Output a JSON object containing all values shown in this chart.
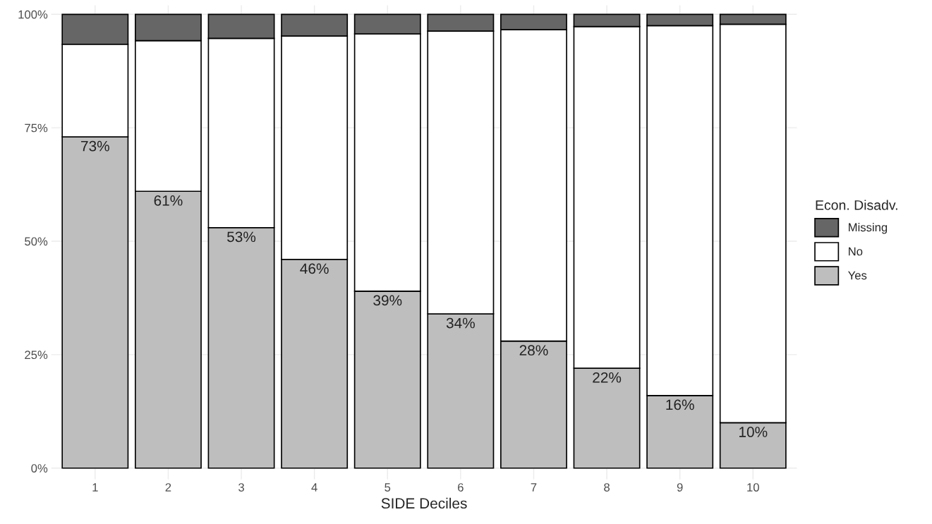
{
  "chart_data": {
    "type": "bar",
    "stacked": true,
    "xlabel": "SIDE Deciles",
    "legend_title": "Econ. Disadv.",
    "legend": "right",
    "grid": true,
    "categories": [
      "1",
      "2",
      "3",
      "4",
      "5",
      "6",
      "7",
      "8",
      "9",
      "10"
    ],
    "series": [
      {
        "name": "Yes",
        "color": "#bebebe",
        "values": [
          73,
          61,
          53,
          46,
          39,
          34,
          28,
          22,
          16,
          10
        ],
        "value_labels": [
          "73%",
          "61%",
          "53%",
          "46%",
          "39%",
          "34%",
          "28%",
          "22%",
          "16%",
          "10%"
        ]
      },
      {
        "name": "No",
        "color": "#ffffff",
        "values": [
          20.4,
          33.2,
          41.7,
          49.2,
          56.7,
          62.3,
          68.6,
          75.3,
          81.5,
          87.8
        ]
      },
      {
        "name": "Missing",
        "color": "#666666",
        "values": [
          6.6,
          5.8,
          5.3,
          4.8,
          4.3,
          3.7,
          3.4,
          2.7,
          2.5,
          2.2
        ]
      }
    ],
    "ylim": [
      -2.5,
      102
    ],
    "yticks": [
      {
        "value": 0,
        "label": "0%"
      },
      {
        "value": 25,
        "label": "25%"
      },
      {
        "value": 50,
        "label": "50%"
      },
      {
        "value": 75,
        "label": "75%"
      },
      {
        "value": 100,
        "label": "100%"
      }
    ]
  }
}
